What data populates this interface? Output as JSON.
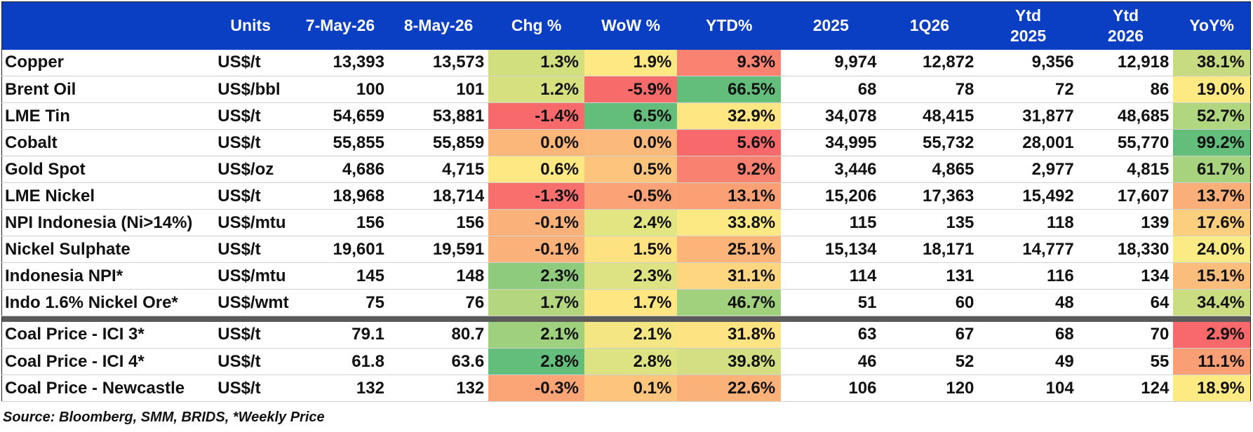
{
  "table": {
    "headers": [
      "",
      "Units",
      "7-May-26",
      "8-May-26",
      "Chg %",
      "WoW %",
      "YTD%",
      "2025",
      "1Q26",
      "Ytd 2025",
      "Ytd 2026",
      "YoY%"
    ],
    "header_lines": {
      "ytd2025": [
        "Ytd",
        "2025"
      ],
      "ytd2026": [
        "Ytd",
        "2026"
      ]
    },
    "rows": [
      [
        "Copper",
        "US$/t",
        "13,393",
        "13,573",
        "1.3%",
        "1.9%",
        "9.3%",
        "9,974",
        "12,872",
        "9,356",
        "12,918",
        "38.1%"
      ],
      [
        "Brent Oil",
        "US$/bbl",
        "100",
        "101",
        "1.2%",
        "-5.9%",
        "66.5%",
        "68",
        "78",
        "72",
        "86",
        "19.0%"
      ],
      [
        "LME Tin",
        "US$/t",
        "54,659",
        "53,881",
        "-1.4%",
        "6.5%",
        "32.9%",
        "34,078",
        "48,415",
        "31,877",
        "48,685",
        "52.7%"
      ],
      [
        "Cobalt",
        "US$/t",
        "55,855",
        "55,859",
        "0.0%",
        "0.0%",
        "5.6%",
        "34,995",
        "55,732",
        "28,001",
        "55,770",
        "99.2%"
      ],
      [
        "Gold Spot",
        "US$/oz",
        "4,686",
        "4,715",
        "0.6%",
        "0.5%",
        "9.2%",
        "3,446",
        "4,865",
        "2,977",
        "4,815",
        "61.7%"
      ],
      [
        "LME Nickel",
        "US$/t",
        "18,968",
        "18,714",
        "-1.3%",
        "-0.5%",
        "13.1%",
        "15,206",
        "17,363",
        "15,492",
        "17,607",
        "13.7%"
      ],
      [
        "NPI Indonesia (Ni>14%)",
        "US$/mtu",
        "156",
        "156",
        "-0.1%",
        "2.4%",
        "33.8%",
        "115",
        "135",
        "118",
        "139",
        "17.6%"
      ],
      [
        "Nickel Sulphate",
        "US$/t",
        "19,601",
        "19,591",
        "-0.1%",
        "1.5%",
        "25.1%",
        "15,134",
        "18,171",
        "14,777",
        "18,330",
        "24.0%"
      ],
      [
        "Indonesia NPI*",
        "US$/mtu",
        "145",
        "148",
        "2.3%",
        "2.3%",
        "31.1%",
        "114",
        "131",
        "116",
        "134",
        "15.1%"
      ],
      [
        "Indo 1.6% Nickel Ore*",
        "US$/wmt",
        "75",
        "76",
        "1.7%",
        "1.7%",
        "46.7%",
        "51",
        "60",
        "48",
        "64",
        "34.4%"
      ],
      [
        "Coal Price - ICI 3*",
        "US$/t",
        "79.1",
        "80.7",
        "2.1%",
        "2.1%",
        "31.8%",
        "63",
        "67",
        "68",
        "70",
        "2.9%"
      ],
      [
        "Coal Price - ICI 4*",
        "US$/t",
        "61.8",
        "63.6",
        "2.8%",
        "2.8%",
        "39.8%",
        "46",
        "52",
        "49",
        "55",
        "11.1%"
      ],
      [
        "Coal Price - Newcastle",
        "US$/t",
        "132",
        "132",
        "-0.3%",
        "0.1%",
        "22.6%",
        "106",
        "120",
        "104",
        "124",
        "18.9%"
      ]
    ],
    "separator_after_row": 9,
    "cell_colors": {
      "chg": [
        "#d2df7f",
        "#d6e07f",
        "#f8696b",
        "#fbb77a",
        "#fee883",
        "#f86f6d",
        "#fbb27a",
        "#fbb27a",
        "#8fcb7d",
        "#b3d67f",
        "#9ed07e",
        "#63be7b",
        "#fba476"
      ],
      "wow": [
        "#fde883",
        "#f86b6b",
        "#63be7b",
        "#fbba7b",
        "#fcc47c",
        "#fba376",
        "#e3e582",
        "#fee282",
        "#dde382",
        "#fee683",
        "#f4e783",
        "#dde382",
        "#fcc47c"
      ],
      "ytd": [
        "#f98370",
        "#63be7b",
        "#fee683",
        "#f8696b",
        "#f98170",
        "#fba075",
        "#fce983",
        "#fcb479",
        "#fed680",
        "#a2d17e",
        "#fee383",
        "#d3df82",
        "#fbb279"
      ],
      "yoy": [
        "#c7dc80",
        "#feea83",
        "#b0d67f",
        "#63be7b",
        "#a7d37f",
        "#fbaf78",
        "#fccf7f",
        "#fbeb84",
        "#fbbd7b",
        "#cbdd81",
        "#f8696b",
        "#fa9f75",
        "#feea83"
      ]
    }
  },
  "source": "Source: Bloomberg, SMM, BRIDS, *Weekly Price",
  "colors": {
    "header_bg": "#0a3fc4",
    "header_text": "#ffffff",
    "separator": "#5a5a5a"
  }
}
